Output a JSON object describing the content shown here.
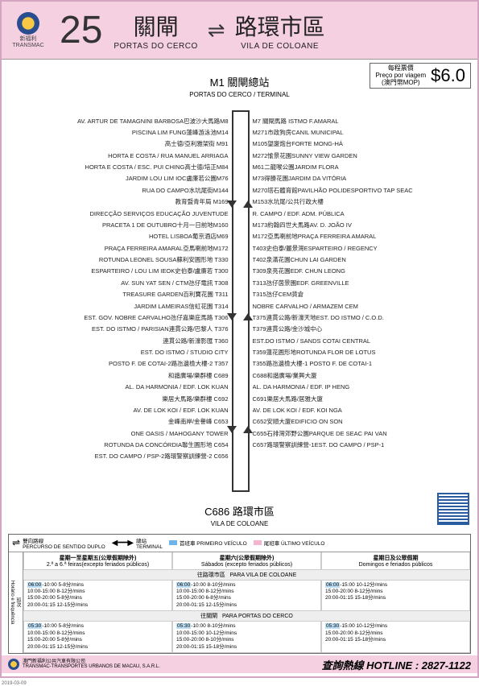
{
  "company": {
    "cn": "新福利",
    "en": "TRANSMAC",
    "full_cn": "澳門新福利公共汽車有限公司",
    "full_pt": "TRANSMAC-TRANSPORTES URBANOS DE MACAU, S.A.R.L."
  },
  "route": "25",
  "origin": {
    "cn": "關閘",
    "pt": "PORTAS DO CERCO"
  },
  "dest": {
    "cn": "路環市區",
    "pt": "VILA DE COLOANE"
  },
  "fare": {
    "label_cn": "每程票價",
    "label_pt": "Preço por viagem",
    "label_mop": "(澳門幣MOP)",
    "value": "$6.0"
  },
  "top_terminal": {
    "code": "M1",
    "cn": "關閘總站",
    "pt": "PORTAS DO CERCO / TERMINAL"
  },
  "bot_terminal": {
    "code": "C686",
    "cn": "路環市區",
    "pt": "VILA DE COLOANE"
  },
  "stops_left": [
    "AV. ARTUR DE TAMAGNINI BARBOSA巴波沙大馬路M8",
    "PISCINA LIM FUNG蓮峰游泳池M14",
    "高士德/亞利雅架街 M91",
    "HORTA E COSTA / RUA MANUEL ARRIAGA",
    "HORTA E COSTA / ESC. PUI CHING高士德/培正M84",
    "JARDIM LOU LIM IOC盧廉若公園M76",
    "RUA DO CAMPO水坑尾街M144",
    "教育暨青年局 M169",
    "DIRECÇÃO SERVIÇOS EDUCAÇÃO JUVENTUDE",
    "PRACETA 1 DE OUTUBRO十月一日前地M160",
    "HOTEL LISBOA葡京酒店M69",
    "PRAÇA FERREIRA AMARAL亞馬喇前地M172",
    "ROTUNDA LEONEL SOUSA蘇利安圓形地 T330",
    "ESPARTEIRO / LOU LIM IEOK史伯泰/盧廉若 T300",
    "AV. SUN YAT SEN / CTM氹仔電訊 T308",
    "TREASURE GARDEN百利寶花園 T311",
    "JARDIM LAMEIRAS信虹花園 T314",
    "EST. GOV. NOBRE CARVALHO氹仔嘉樂庇馬路 T306",
    "EST. DO ISTMO / PARISIAN連貫公路/巴黎人 T376",
    "連貫公路/新濠影匯 T360",
    "EST. DO ISTMO / STUDIO CITY",
    "POSTO F. DE COTAI-2路氹邊檢大樓-2 T357",
    "和諧廣場/樂群樓 C689",
    "AL. DA HARMONIA / EDF. LOK KUAN",
    "樂居大馬路/樂群樓 C692",
    "AV. DE LOK KOI / EDF. LOK KUAN",
    "金峰南岸/金譽峰 C653",
    "ONE OASIS / MAHOGANY TOWER",
    "ROTUNDA DA CONCÓRDIA聯生圓形地 C654",
    "EST. DO CAMPO / PSP-2路環警察訓練營-2 C656"
  ],
  "stops_right": [
    "M7 關閘馬路 ISTMO F.AMARAL",
    "M271市政狗房CANIL MUNICIPAL",
    "M105望廈炮台FORTE MONG-HÁ",
    "M272愉景花園SUNNY VIEW GARDEN",
    "M61二龍喉公園JARDIM FLORA",
    "M73得勝花園JARDIM DA VITÓRIA",
    "M270塔石體育館PAVILHÃO POLIDESPORTIVO TAP SEAC",
    "M153水坑尾/公共行政大樓",
    "R. CAMPO / EDF. ADM. PÚBLICA",
    "M173約翰四世大馬路AV. D. JOÃO IV",
    "M172亞馬喇前地PRAÇA FERREIRA AMARAL",
    "T403史伯泰/麗景灣ESPARTEIRO / REGENCY",
    "T402泉滿花園CHUN LAI GARDEN",
    "T309泉亮花園EDF. CHUN LEONG",
    "T313氹仔茵景園EDF. GREENVILLE",
    "T315氹仔CEM貨倉",
    "NOBRE CARVALHO / ARMAZEM CEM",
    "T375連貫公路/新濠天地EST. DO ISTMO / C.O.D.",
    "T379連貫公路/金沙城中心",
    "EST.DO ISTMO / SANDS COTAI CENTRAL",
    "T359蓮花圓形地ROTUNDA FLOR DE LOTUS",
    "T355路氹邊檢大樓-1 POSTO F. DE COTAI-1",
    "C688和諧廣場/業興大廈",
    "AL. DA HARMONIA / EDF. IP HENG",
    "C691樂居大馬路/居雅大廈",
    "AV. DE LOK KOI / EDF. KOI NGA",
    "C652安順大廈EDIFICIO ON SON",
    "C655石排灣郊野公園PARQUE DE SEAC PAI VAN",
    "C657路環警察訓練營-1EST. DO CAMPO / PSP-1"
  ],
  "legend": {
    "bidir_cn": "雙向路線",
    "bidir_pt": "PERCURSO DE SENTIDO DUPLO",
    "term_cn": "總站",
    "term_pt": "TERMINAL",
    "first_cn": "首班車",
    "first_pt": "PRIMEIRO VEÍCULO",
    "last_cn": "尾班車",
    "last_pt": "ÚLTIMO VEÍCULO"
  },
  "sched": {
    "freq_cn": "班次",
    "freq_pt": "Horário e frequência",
    "days": [
      {
        "cn": "星期一至星期五(公眾假期除外)",
        "pt": "2.ª a 6.ª feiras(excepto feriados públicos)"
      },
      {
        "cn": "星期六(公眾假期除外)",
        "pt": "Sábados (excepto feriados públicos)"
      },
      {
        "cn": "星期日及公眾假期",
        "pt": "Domingos e feriados públicos"
      }
    ],
    "dir1": {
      "cn": "往路環市區",
      "pt": "PARA VILA DE COLOANE"
    },
    "dir2": {
      "cn": "往關閘",
      "pt": "PARA PORTAS DO CERCO"
    },
    "rows1": [
      [
        "06:00-10:00  5-8分/mins\n10:00-15:00  8-12分/mins\n15:00-20:00  5-8分/mins\n20:00-01:15  12-15分/mins",
        "06:00-10:00  8-10分/mins\n10:00-15:00  8-12分/mins\n15:00-20:00  6-8分/mins\n20:00-01:15  12-15分/mins",
        "06:00-15:00  10-12分/mins\n15:00-20:00  8-12分/mins\n20:00-01:15  15-18分/mins"
      ]
    ],
    "rows2": [
      [
        "05:30-10:00  5-8分/mins\n10:00-15:00  8-12分/mins\n15:00-20:00  5-8分/mins\n20:00-01:15  12-15分/mins",
        "05:30-10:00  8-10分/mins\n10:00-15:00  10-12分/mins\n15:00-20:00  8-10分/mins\n20:00-01:15  15-18分/mins",
        "05:30-15:00  10-12分/mins\n15:00-20:00  8-12分/mins\n20:00-01:15  15-18分/mins"
      ]
    ]
  },
  "hotline": {
    "label": "查詢熱線  HOTLINE :",
    "num": "2827-1122"
  },
  "date": "2019-03-09",
  "colors": {
    "pink": "#f5d0e0",
    "blue_sw": "#6db5e8",
    "pink_sw": "#f5b5d0",
    "line": "#333333"
  }
}
